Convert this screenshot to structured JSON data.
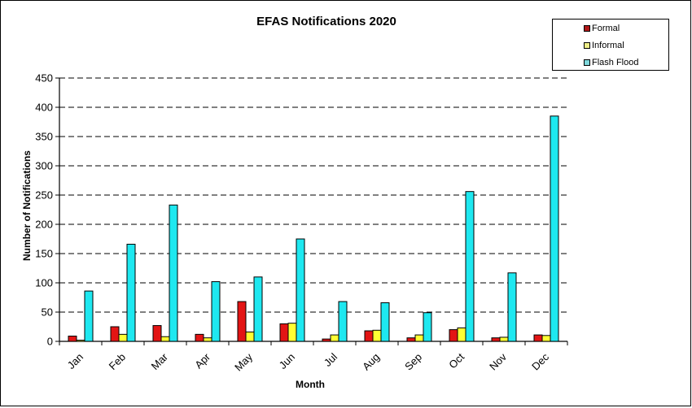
{
  "chart_data": {
    "type": "bar",
    "title": "EFAS Notifications 2020",
    "xlabel": "Month",
    "ylabel": "Number of Notifications",
    "ylim": [
      0,
      450
    ],
    "yticks": [
      0,
      50,
      100,
      150,
      200,
      250,
      300,
      350,
      400,
      450
    ],
    "grid": "horizontal dashed",
    "legend_position": "top-right",
    "categories": [
      "Jan",
      "Feb",
      "Mar",
      "Apr",
      "May",
      "Jun",
      "Jul",
      "Aug",
      "Sep",
      "Oct",
      "Nov",
      "Dec"
    ],
    "series": [
      {
        "name": "Formal",
        "color": "#e31414",
        "values": [
          9,
          25,
          27,
          12,
          68,
          30,
          4,
          18,
          6,
          20,
          6,
          11
        ]
      },
      {
        "name": "Informal",
        "color": "#ffff33",
        "values": [
          2,
          12,
          8,
          6,
          16,
          31,
          11,
          19,
          11,
          23,
          7,
          10
        ]
      },
      {
        "name": "Flash Flood",
        "color": "#1ee8f0",
        "values": [
          86,
          166,
          233,
          102,
          110,
          175,
          68,
          66,
          49,
          256,
          117,
          385
        ]
      }
    ]
  }
}
